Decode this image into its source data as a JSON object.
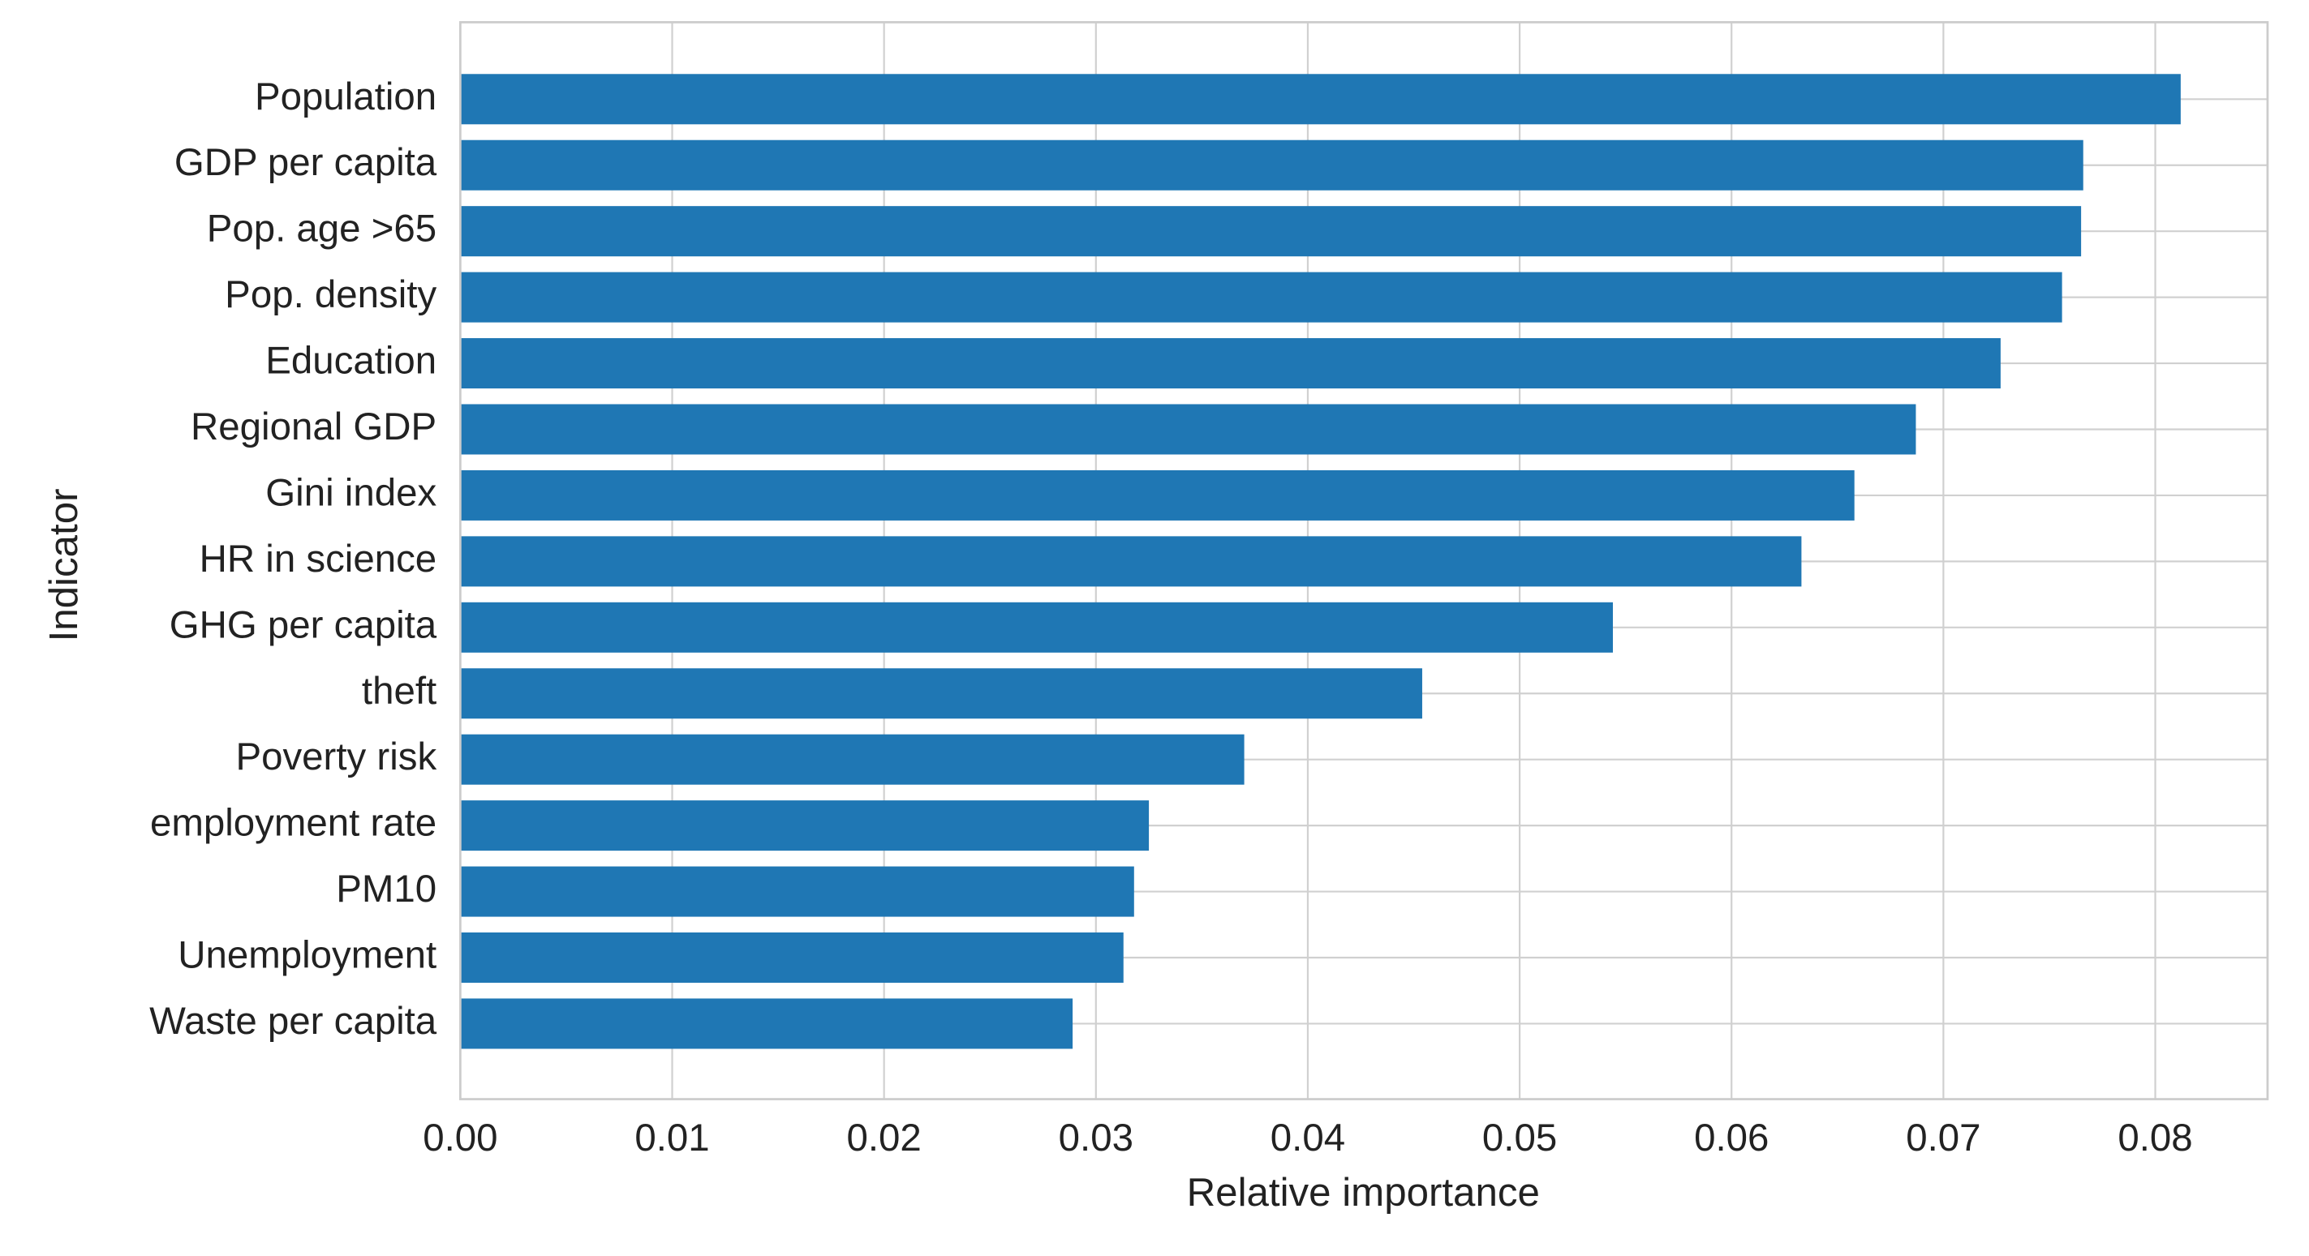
{
  "chart_data": {
    "type": "barh",
    "xlabel": "Relative importance",
    "ylabel": "Indicator",
    "categories": [
      "Population",
      "GDP per capita",
      "Pop. age >65",
      "Pop. density",
      "Education",
      "Regional GDP",
      "Gini index",
      "HR in science",
      "GHG per capita",
      "theft",
      "Poverty risk",
      "employment rate",
      "PM10",
      "Unemployment",
      "Waste per capita"
    ],
    "values": [
      0.0812,
      0.0766,
      0.0765,
      0.0756,
      0.0727,
      0.0687,
      0.0658,
      0.0633,
      0.0544,
      0.0454,
      0.037,
      0.0325,
      0.0318,
      0.0313,
      0.0289
    ],
    "color": "#1f77b4",
    "xlim": [
      0,
      0.0853
    ],
    "xticks": [
      {
        "value": 0,
        "label": "0.00"
      },
      0.01,
      0.02,
      0.03,
      0.04,
      0.05,
      0.06,
      0.07,
      0.08
    ],
    "grid": true
  }
}
